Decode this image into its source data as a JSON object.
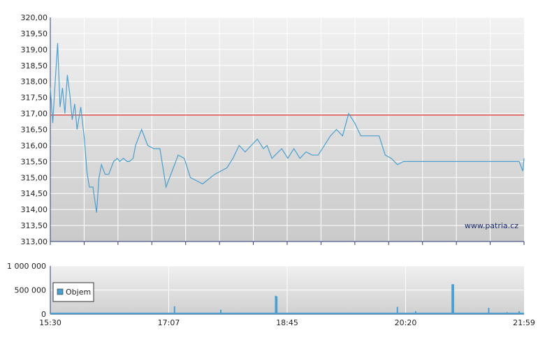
{
  "watermark": "www.patria.cz",
  "chart_data": [
    {
      "type": "line",
      "name": "price",
      "ylim": [
        313.0,
        320.0
      ],
      "yticks": [
        "320,00",
        "319,50",
        "319,00",
        "318,50",
        "318,00",
        "317,50",
        "317,00",
        "316,50",
        "316,00",
        "315,50",
        "315,00",
        "314,50",
        "314,00",
        "313,50",
        "313,00"
      ],
      "reference_line": {
        "value": 316.95,
        "color": "#e05050"
      },
      "line_color": "#4a9fd0",
      "x": [
        "15:30",
        "15:32",
        "15:34",
        "15:36",
        "15:38",
        "15:40",
        "15:42",
        "15:44",
        "15:46",
        "15:48",
        "15:50",
        "15:52",
        "15:55",
        "15:58",
        "16:00",
        "16:02",
        "16:05",
        "16:08",
        "16:10",
        "16:12",
        "16:15",
        "16:18",
        "16:20",
        "16:22",
        "16:25",
        "16:27",
        "16:30",
        "16:33",
        "16:35",
        "16:38",
        "16:40",
        "16:45",
        "16:50",
        "16:55",
        "17:00",
        "17:05",
        "17:10",
        "17:15",
        "17:20",
        "17:25",
        "17:30",
        "17:35",
        "17:45",
        "17:55",
        "18:00",
        "18:05",
        "18:10",
        "18:15",
        "18:20",
        "18:25",
        "18:28",
        "18:32",
        "18:40",
        "18:45",
        "18:50",
        "18:55",
        "19:00",
        "19:05",
        "19:10",
        "19:15",
        "19:20",
        "19:25",
        "19:30",
        "19:35",
        "19:40",
        "19:45",
        "19:50",
        "19:55",
        "20:00",
        "20:05",
        "20:10",
        "20:15",
        "20:20",
        "20:30",
        "20:40",
        "20:45",
        "20:50",
        "21:00",
        "21:05",
        "21:10",
        "21:20",
        "21:30",
        "21:35",
        "21:40",
        "21:45",
        "21:50",
        "21:55",
        "21:58",
        "21:59"
      ],
      "y": [
        317.8,
        316.7,
        318.0,
        319.2,
        317.2,
        317.8,
        317.0,
        318.2,
        317.6,
        316.8,
        317.3,
        316.5,
        317.2,
        316.2,
        315.2,
        314.7,
        314.7,
        313.9,
        315.0,
        315.4,
        315.1,
        315.1,
        315.3,
        315.5,
        315.6,
        315.5,
        315.6,
        315.5,
        315.5,
        315.6,
        316.0,
        316.5,
        316.0,
        315.9,
        315.9,
        314.7,
        315.2,
        315.7,
        315.6,
        315.0,
        314.9,
        314.8,
        315.1,
        315.3,
        315.6,
        316.0,
        315.8,
        316.0,
        316.2,
        315.9,
        316.0,
        315.6,
        315.9,
        315.6,
        315.9,
        315.6,
        315.8,
        315.7,
        315.7,
        316.0,
        316.3,
        316.5,
        316.3,
        317.0,
        316.7,
        316.3,
        316.3,
        316.3,
        316.3,
        315.7,
        315.6,
        315.4,
        315.5,
        315.5,
        315.5,
        315.5,
        315.5,
        315.5,
        315.5,
        315.5,
        315.5,
        315.5,
        315.5,
        315.5,
        315.5,
        315.5,
        315.5,
        315.2,
        315.6
      ]
    },
    {
      "type": "bar",
      "name": "volume",
      "ylim": [
        0,
        1000000
      ],
      "yticks": [
        "1 000 000",
        "500 000",
        "0"
      ],
      "legend": "Objem",
      "bar_color": "#4a9fd0",
      "x": [
        "15:35",
        "15:45",
        "15:55",
        "16:05",
        "16:15",
        "16:25",
        "16:35",
        "16:45",
        "16:55",
        "17:05",
        "17:12",
        "17:20",
        "17:35",
        "17:50",
        "18:05",
        "18:20",
        "18:35",
        "18:36",
        "18:50",
        "19:05",
        "19:20",
        "19:35",
        "19:50",
        "20:05",
        "20:15",
        "20:30",
        "20:45",
        "21:00",
        "21:01",
        "21:15",
        "21:30",
        "21:45",
        "21:55"
      ],
      "values": [
        30000,
        25000,
        30000,
        20000,
        25000,
        20000,
        30000,
        25000,
        20000,
        30000,
        160000,
        30000,
        20000,
        90000,
        30000,
        20000,
        380000,
        370000,
        30000,
        25000,
        20000,
        30000,
        25000,
        30000,
        150000,
        60000,
        20000,
        620000,
        620000,
        30000,
        130000,
        40000,
        60000
      ]
    }
  ],
  "x_ticks": [
    "15:30",
    "17:07",
    "18:45",
    "20:20",
    "21:59"
  ],
  "x_range": [
    "15:30",
    "21:59"
  ]
}
